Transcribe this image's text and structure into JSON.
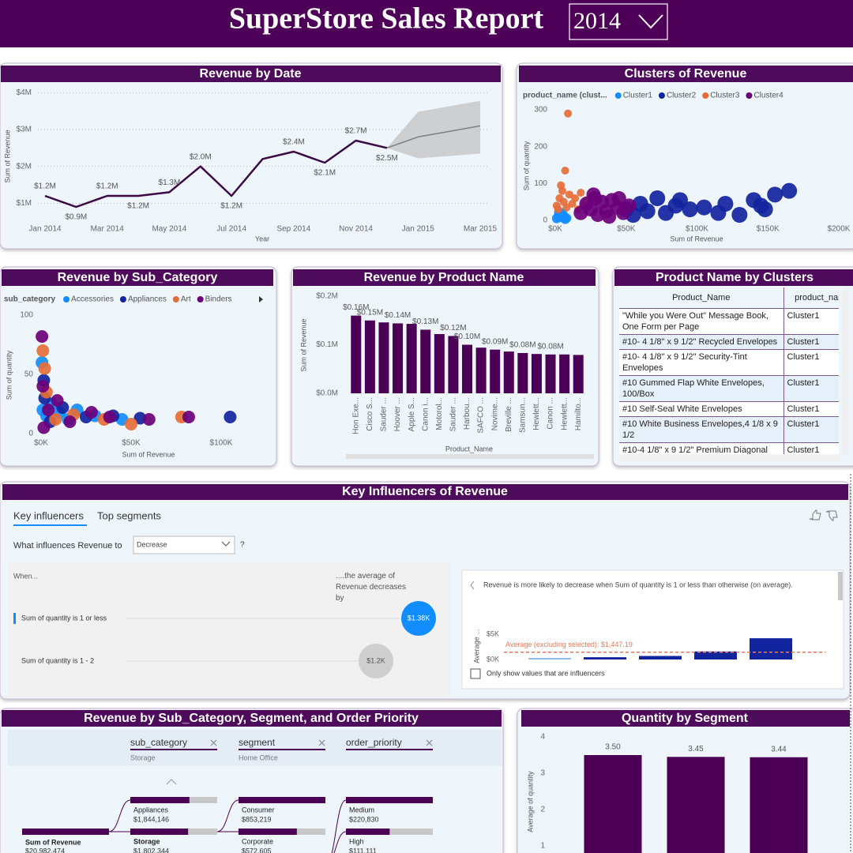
{
  "header": {
    "title": "SuperStore Sales Report",
    "year": "2014"
  },
  "chart_data": [
    {
      "type": "line",
      "title": "Revenue by Date",
      "xlabel": "Year",
      "ylabel": "Sum of Revenue",
      "categories": [
        "Jan 2014",
        null,
        "Mar 2014",
        null,
        "May 2014",
        null,
        "Jul 2014",
        null,
        "Sep 2014",
        null,
        "Nov 2014",
        null,
        "Jan 2015",
        null,
        "Mar 2015"
      ],
      "values": [
        1.2,
        0.9,
        1.2,
        1.2,
        1.3,
        2.0,
        1.2,
        2.2,
        2.4,
        2.1,
        2.7,
        2.5,
        null,
        null,
        null
      ],
      "value_labels": [
        "$1.2M",
        "$0.9M",
        "$1.2M",
        "$1.2M",
        "$1.3M",
        "$2.0M",
        "$1.2M",
        null,
        "$2.4M",
        "$2.1M",
        "$2.7M",
        "$2.5M",
        null,
        null,
        null
      ],
      "color": "#3b0a45",
      "forecast": {
        "values": [
          null,
          null,
          null,
          null,
          null,
          null,
          null,
          null,
          null,
          null,
          null,
          2.5,
          2.8,
          2.95,
          3.1
        ],
        "lower": [
          null,
          null,
          null,
          null,
          null,
          null,
          null,
          null,
          null,
          null,
          null,
          2.5,
          2.22,
          2.28,
          2.35
        ],
        "upper": [
          null,
          null,
          null,
          null,
          null,
          null,
          null,
          null,
          null,
          null,
          null,
          2.5,
          3.48,
          3.63,
          3.78
        ],
        "color": "#7f7f7f",
        "band_color": "#c8c8c8"
      },
      "ylim": [
        0.6,
        4.2
      ],
      "yticks": [
        {
          "value": 1,
          "label": "$1M"
        },
        {
          "value": 2,
          "label": "$2M"
        },
        {
          "value": 3,
          "label": "$3M"
        },
        {
          "value": 4,
          "label": "$4M"
        }
      ],
      "grid": true
    },
    {
      "type": "scatter",
      "title": "Clusters of Revenue",
      "xlabel": "Sum of Revenue",
      "ylabel": "Sum of quantity",
      "legend_title": "product_name (clust...",
      "series": [
        {
          "name": "Cluster1",
          "color": "#118dff",
          "x": [
            1000,
            2000,
            3000,
            4000,
            5000,
            6000,
            7000,
            2500,
            8000
          ],
          "values": [
            5,
            10,
            15,
            8,
            20,
            12,
            3,
            22,
            6
          ]
        },
        {
          "name": "Cluster2",
          "color": "#12239e",
          "x": [
            50000,
            55000,
            60000,
            65000,
            72000,
            78000,
            85000,
            95000,
            105000,
            120000,
            130000,
            140000,
            145000,
            155000,
            165000,
            148000,
            88000,
            115000
          ],
          "values": [
            30,
            15,
            45,
            25,
            60,
            20,
            40,
            30,
            35,
            45,
            15,
            55,
            40,
            70,
            80,
            30,
            55,
            20
          ]
        },
        {
          "name": "Cluster3",
          "color": "#e66c37",
          "x": [
            9000,
            7000,
            1000,
            3000,
            5000,
            6000,
            8000,
            10000,
            12000,
            14000,
            16000,
            18000,
            20000,
            4000,
            22000,
            2000
          ],
          "values": [
            290,
            135,
            40,
            60,
            80,
            50,
            35,
            70,
            45,
            60,
            30,
            75,
            40,
            95,
            55,
            30
          ]
        },
        {
          "name": "Cluster4",
          "color": "#6b007b",
          "x": [
            18000,
            22000,
            25000,
            28000,
            30000,
            33000,
            36000,
            40000,
            44000,
            48000,
            52000,
            27000,
            38000,
            45000
          ],
          "values": [
            20,
            45,
            30,
            60,
            15,
            50,
            25,
            55,
            35,
            20,
            40,
            70,
            10,
            60
          ]
        }
      ],
      "xlim": [
        0,
        200000
      ],
      "xticks": [
        {
          "value": 0,
          "label": "$0K"
        },
        {
          "value": 50000,
          "label": "$50K"
        },
        {
          "value": 100000,
          "label": "$100K"
        },
        {
          "value": 150000,
          "label": "$150K"
        },
        {
          "value": 200000,
          "label": "$200K"
        }
      ],
      "ylim": [
        0,
        320
      ],
      "yticks": [
        0,
        100,
        200,
        300
      ],
      "grid": false
    },
    {
      "type": "scatter",
      "title": "Revenue by Sub_Category",
      "xlabel": "Sum of Revenue",
      "ylabel": "Sum of quantity",
      "legend_title": "sub_category",
      "series": [
        {
          "name": "Accessories",
          "color": "#118dff",
          "x": [
            1000,
            3000,
            6000,
            10000,
            15000,
            20000,
            30000,
            45000,
            500
          ],
          "values": [
            20,
            15,
            25,
            18,
            12,
            20,
            15,
            12,
            60
          ]
        },
        {
          "name": "Appliances",
          "color": "#12239e",
          "x": [
            2000,
            5000,
            12000,
            25000,
            40000,
            55000,
            105000,
            1500
          ],
          "values": [
            30,
            10,
            22,
            14,
            15,
            13,
            14,
            45
          ]
        },
        {
          "name": "Art",
          "color": "#e66c37",
          "x": [
            1000,
            3000,
            8000,
            18000,
            35000,
            50000,
            78000,
            2000
          ],
          "values": [
            70,
            35,
            12,
            16,
            12,
            8,
            14,
            55
          ]
        },
        {
          "name": "Binders",
          "color": "#6b007b",
          "x": [
            500,
            1000,
            4000,
            9000,
            16000,
            28000,
            38000,
            60000,
            82000,
            1500
          ],
          "values": [
            82,
            40,
            20,
            28,
            10,
            18,
            14,
            12,
            14,
            5
          ]
        }
      ],
      "xlim": [
        0,
        125000
      ],
      "xticks": [
        {
          "value": 0,
          "label": "$0K"
        },
        {
          "value": 50000,
          "label": "$50K"
        },
        {
          "value": 100000,
          "label": "$100K"
        }
      ],
      "ylim": [
        0,
        106
      ],
      "yticks": [
        0,
        50,
        100
      ],
      "grid": false
    },
    {
      "type": "bar",
      "title": "Revenue by Product Name",
      "xlabel": "Product_Name",
      "ylabel": "Sum of Revenue",
      "categories": [
        "Hon Exe...",
        "Cisco S...",
        "Sauder ...",
        "Hoover ...",
        "Apple S...",
        "Canon i...",
        "Motorol...",
        "Sauder ...",
        "Harbou...",
        "SAFCO ...",
        "Novime...",
        "Breville ...",
        "Samsun...",
        "Hewlett...",
        "Canon ...",
        "Hewlett...",
        "Hamilto..."
      ],
      "values": [
        0.16,
        0.15,
        0.146,
        0.144,
        0.143,
        0.131,
        0.122,
        0.118,
        0.1,
        0.094,
        0.09,
        0.086,
        0.083,
        0.081,
        0.08,
        0.08,
        0.079
      ],
      "value_labels": [
        "$0.16M",
        "$0.15M",
        null,
        "$0.14M",
        null,
        "$0.13M",
        null,
        "$0.12M",
        "$0.10M",
        null,
        "$0.09M",
        null,
        "$0.08M",
        null,
        "$0.08M",
        null,
        null
      ],
      "color": "#4b0055",
      "ylim": [
        0,
        0.2
      ],
      "yticks": [
        {
          "value": 0,
          "label": "$0.0M"
        },
        {
          "value": 0.1,
          "label": "$0.1M"
        },
        {
          "value": 0.2,
          "label": "$0.2M"
        }
      ],
      "grid": false
    },
    {
      "type": "bar",
      "ylabel": "Average ...",
      "categories": [
        null,
        null,
        null,
        null,
        null
      ],
      "values": [
        0.3,
        0.45,
        0.7,
        1.6,
        4.2
      ],
      "colors": [
        "#8cb8f0",
        "#12239e",
        "#12239e",
        "#12239e",
        "#12239e"
      ],
      "ylim": [
        0,
        5
      ],
      "yticks": [
        {
          "value": 0,
          "label": "$0K"
        },
        {
          "value": 5,
          "label": "$5K"
        }
      ],
      "grid": false,
      "reference_line": {
        "value": 1.44719,
        "label": "Average (excluding selected): $1,447.19",
        "color": "#e8795b"
      }
    },
    {
      "type": "bar",
      "title": "Quantity by Segment",
      "ylabel": "Average of quantity",
      "categories": [
        null,
        null,
        null
      ],
      "values": [
        3.5,
        3.45,
        3.44
      ],
      "value_labels": [
        "3.50",
        "3.45",
        "3.44"
      ],
      "color": "#4b0055",
      "ylim": [
        0,
        4.2
      ],
      "yticks": [
        1,
        2,
        3,
        4
      ],
      "grid": false
    }
  ],
  "table": {
    "title": "Product Name by Clusters",
    "columns": [
      "Product_Name",
      "product_nam"
    ],
    "rows": [
      [
        "\"While you Were Out\" Message Book, One Form per Page",
        "Cluster1"
      ],
      [
        "#10- 4 1/8\" x 9 1/2\" Recycled Envelopes",
        "Cluster1"
      ],
      [
        "#10- 4 1/8\" x 9 1/2\" Security-Tint Envelopes",
        "Cluster1"
      ],
      [
        "#10 Gummed Flap White Envelopes, 100/Box",
        "Cluster1"
      ],
      [
        "#10 Self-Seal White Envelopes",
        "Cluster1"
      ],
      [
        "#10 White Business Envelopes,4 1/8 x 9 1/2",
        "Cluster1"
      ],
      [
        "#10-4 1/8\" x 9 1/2\" Premium Diagonal",
        "Cluster1"
      ]
    ]
  },
  "key_influencers": {
    "title": "Key Influencers of Revenue",
    "tabs": [
      "Key influencers",
      "Top segments"
    ],
    "question": "What influences Revenue to",
    "dropdown": "Decrease",
    "help": "?",
    "when": "When...",
    "result_header": "....the average of Revenue decreases by",
    "influencers": [
      {
        "label": "Sum of quantity is 1 or less",
        "value": 1.38,
        "value_label": "$1.38K"
      },
      {
        "label": "Sum of quantity is 1 - 2",
        "value": 1.2,
        "value_label": "$1.2K"
      }
    ],
    "detail": "Revenue is more likely to decrease when Sum of quantity is 1 or less than otherwise (on average).",
    "checkbox": "Only show values that are influencers"
  },
  "decomposition": {
    "title": "Revenue by Sub_Category, Segment, and Order Priority",
    "root": {
      "label": "Sum of Revenue",
      "value": 20982474,
      "value_label": "$20,982,474"
    },
    "levels": [
      {
        "field": "sub_category",
        "selected": "Storage",
        "nodes": [
          {
            "label": "Appliances",
            "value": 1844146,
            "value_label": "$1,844,146"
          },
          {
            "label": "Storage",
            "value": 1802344,
            "value_label": "$1,802,344"
          }
        ]
      },
      {
        "field": "segment",
        "selected": "Home Office",
        "nodes": [
          {
            "label": "Consumer",
            "value": 853219,
            "value_label": "$853,219"
          },
          {
            "label": "Corporate",
            "value": 572605,
            "value_label": "$572,605"
          }
        ]
      },
      {
        "field": "order_priority",
        "nodes": [
          {
            "label": "Medium",
            "value": 220830,
            "value_label": "$220,830"
          },
          {
            "label": "High",
            "value": 111111,
            "value_label": "$111,111"
          }
        ]
      }
    ]
  }
}
